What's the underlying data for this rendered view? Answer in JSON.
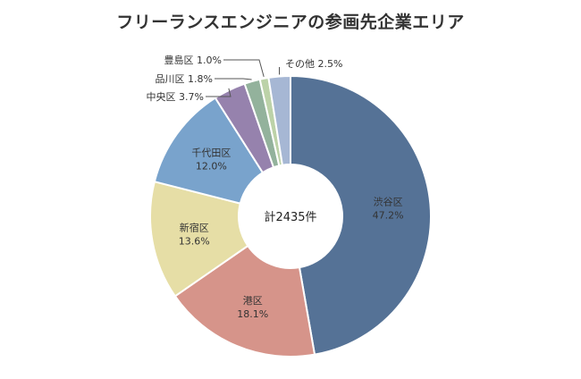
{
  "chart_data": {
    "type": "pie",
    "title": "フリーランスエンジニアの参画先企業エリア",
    "center_label": "計2435件",
    "slices": [
      {
        "name": "渋谷区",
        "value": 47.2,
        "label": "47.2%",
        "color": "#557296"
      },
      {
        "name": "港区",
        "value": 18.1,
        "label": "18.1%",
        "color": "#d6948a"
      },
      {
        "name": "新宿区",
        "value": 13.6,
        "label": "13.6%",
        "color": "#e6dea6"
      },
      {
        "name": "千代田区",
        "value": 12.0,
        "label": "12.0%",
        "color": "#79a3cc"
      },
      {
        "name": "中央区",
        "value": 3.7,
        "label": "3.7%",
        "color": "#9682ad"
      },
      {
        "name": "品川区",
        "value": 1.8,
        "label": "1.8%",
        "color": "#93b29c"
      },
      {
        "name": "豊島区",
        "value": 1.0,
        "label": "1.0%",
        "color": "#bcd2a8"
      },
      {
        "name": "その他",
        "value": 2.5,
        "label": "2.5%",
        "color": "#a6b7d4"
      }
    ]
  }
}
